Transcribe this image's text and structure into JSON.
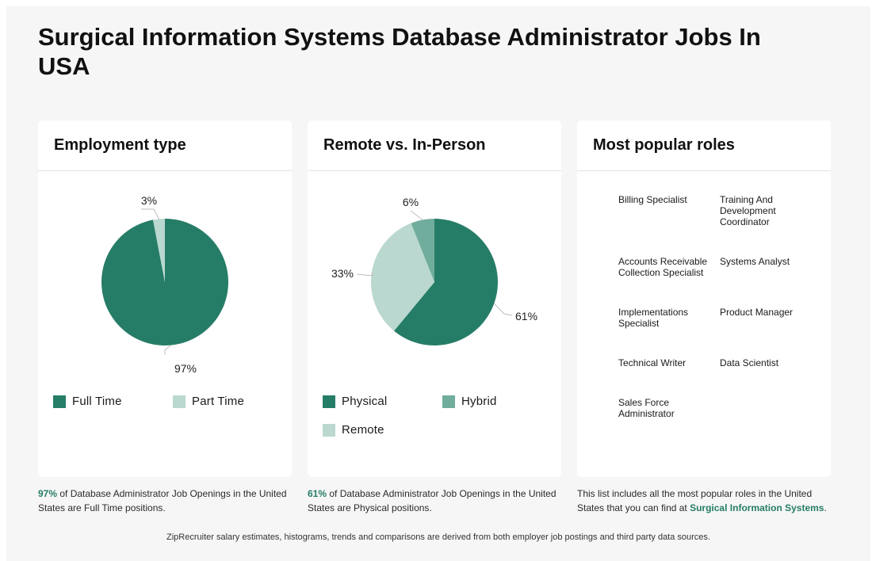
{
  "page": {
    "title": "Surgical Information Systems Database Administrator Jobs In USA",
    "footer": "ZipRecruiter salary estimates, histograms, trends and comparisons are derived from both employer job postings and third party data sources."
  },
  "colors": {
    "dark_green": "#267d67",
    "light_green": "#bad8cf",
    "mid_green": "#71ad9d"
  },
  "employment": {
    "heading": "Employment type",
    "caption_pct": "97%",
    "caption_rest": " of Database Administrator Job Openings in the United States are Full Time positions."
  },
  "remote": {
    "heading": "Remote vs. In-Person",
    "caption_pct": "61%",
    "caption_rest": " of Database Administrator Job Openings in the United States are Physical positions."
  },
  "roles": {
    "heading": "Most popular roles",
    "items": [
      "Billing Specialist",
      "Training And Development Coordinator",
      "Accounts Receivable Collection Specialist",
      "Systems Analyst",
      "Implementations Specialist",
      "Product Manager",
      "Technical Writer",
      "Data Scientist",
      "Sales Force Administrator"
    ],
    "caption_text": "This list includes all the most popular roles in the United States that you can find at ",
    "caption_brand": "Surgical Information Systems",
    "caption_end": "."
  },
  "chart_data": [
    {
      "type": "pie",
      "title": "Employment type",
      "categories": [
        "Full Time",
        "Part Time"
      ],
      "values": [
        97,
        3
      ],
      "labels": [
        "97%",
        "3%"
      ],
      "colors": [
        "#267d67",
        "#bad8cf"
      ],
      "legend": "bottom"
    },
    {
      "type": "pie",
      "title": "Remote vs. In-Person",
      "categories": [
        "Physical",
        "Remote",
        "Hybrid"
      ],
      "values": [
        61,
        33,
        6
      ],
      "labels": [
        "61%",
        "33%",
        "6%"
      ],
      "colors": [
        "#267d67",
        "#bad8cf",
        "#71ad9d"
      ],
      "legend_order": [
        "Physical",
        "Hybrid",
        "Remote"
      ],
      "legend": "bottom"
    }
  ]
}
